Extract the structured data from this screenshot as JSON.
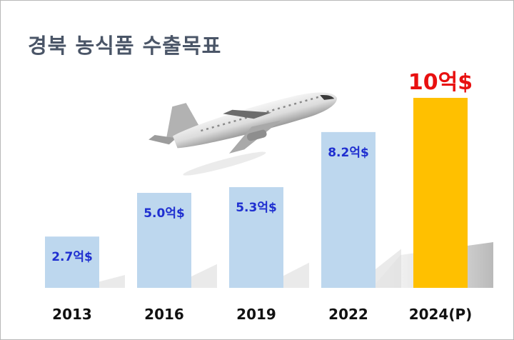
{
  "title": "경북 농식품 수출목표",
  "colors": {
    "bar": "#bdd7ee",
    "highlight_bar": "#ffc000",
    "label": "#1f2fd0",
    "highlight_label": "#e81010",
    "title": "#4a5567"
  },
  "decorations": [
    "airplane-icon"
  ],
  "chart_data": {
    "type": "bar",
    "title": "경북 농식품 수출목표",
    "categories": [
      "2013",
      "2016",
      "2019",
      "2022",
      "2024(P)"
    ],
    "values": [
      2.7,
      5.0,
      5.3,
      8.2,
      10
    ],
    "data_labels": [
      "2.7억$",
      "5.0억$",
      "5.3억$",
      "8.2억$",
      "10억$"
    ],
    "highlight_index": 4,
    "xlabel": "",
    "ylabel": "",
    "ylim": [
      0,
      10
    ],
    "grid": false,
    "legend": "none"
  }
}
